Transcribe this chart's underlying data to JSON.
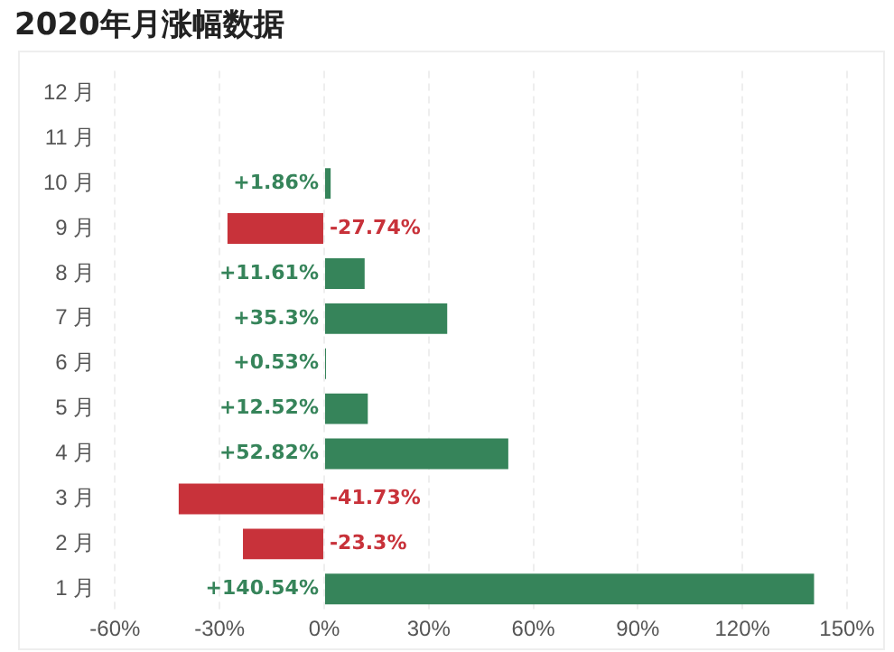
{
  "chart_data": {
    "type": "bar",
    "orientation": "horizontal",
    "title": "2020年月涨幅数据",
    "categories": [
      "12 月",
      "11 月",
      "10 月",
      "9 月",
      "8 月",
      "7 月",
      "6 月",
      "5 月",
      "4 月",
      "3 月",
      "2 月",
      "1 月"
    ],
    "values": [
      null,
      null,
      1.86,
      -27.74,
      11.61,
      35.3,
      0.53,
      12.52,
      52.82,
      -41.73,
      -23.3,
      140.54
    ],
    "colors": [
      "#36845a",
      "#36845a",
      "#36845a",
      "#c8323a",
      "#36845a",
      "#36845a",
      "#36845a",
      "#36845a",
      "#36845a",
      "#c8323a",
      "#c8323a",
      "#36845a"
    ],
    "value_labels": [
      null,
      null,
      "+1.86%",
      "-27.74%",
      "+11.61%",
      "+35.3%",
      "+0.53%",
      "+12.52%",
      "+52.82%",
      "-41.73%",
      "-23.3%",
      "+140.54%"
    ],
    "xlim": [
      -60,
      150
    ],
    "xticks": [
      {
        "value": -60,
        "label": "-60%"
      },
      {
        "value": -30,
        "label": "-30%"
      },
      {
        "value": 0,
        "label": "0%"
      },
      {
        "value": 30,
        "label": "30%"
      },
      {
        "value": 60,
        "label": "60%"
      },
      {
        "value": 90,
        "label": "90%"
      },
      {
        "value": 120,
        "label": "120%"
      },
      {
        "value": 150,
        "label": "150%"
      }
    ],
    "grid": "x",
    "legend": false
  }
}
